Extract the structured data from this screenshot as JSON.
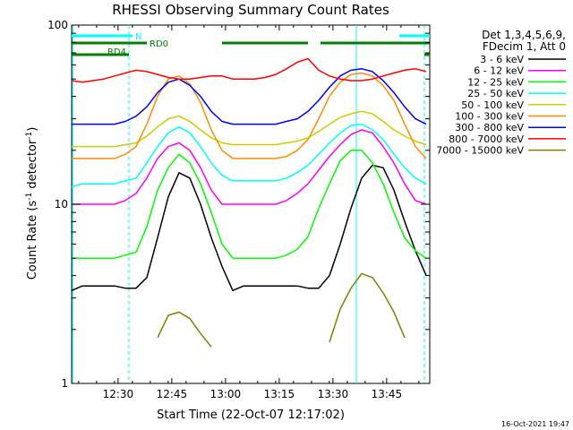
{
  "chart_data": {
    "type": "line",
    "title": "RHESSI Observing Summary Count Rates",
    "xlabel": "Start Time (22-Oct-07 12:17:02)",
    "ylabel_main": "Count Rate (s",
    "ylabel_sup1": "-1",
    "ylabel_mid": " detector",
    "ylabel_sup2": "-1",
    "ylabel_end": ")",
    "x_unit": "minutes since 12:17:02",
    "xlim": [
      0,
      100
    ],
    "ylim": [
      1,
      100
    ],
    "yscale": "log",
    "x_ticks": [
      {
        "label": "12:30",
        "value": 12.97
      },
      {
        "label": "12:45",
        "value": 27.97
      },
      {
        "label": "13:00",
        "value": 42.97
      },
      {
        "label": "13:15",
        "value": 57.97
      },
      {
        "label": "13:30",
        "value": 72.97
      },
      {
        "label": "13:45",
        "value": 87.97
      }
    ],
    "y_ticks": [
      {
        "label": "1",
        "value": 1
      },
      {
        "label": "10",
        "value": 10
      },
      {
        "label": "100",
        "value": 100
      }
    ],
    "x": [
      0,
      3,
      6,
      9,
      12,
      15,
      18,
      21,
      24,
      27,
      30,
      33,
      36,
      39,
      42,
      45,
      48,
      51,
      54,
      57,
      60,
      63,
      66,
      69,
      72,
      75,
      78,
      81,
      84,
      87,
      90,
      93,
      96,
      99
    ],
    "series": [
      {
        "name": "3 - 6 keV",
        "color": "#000000",
        "values": [
          3.3,
          3.5,
          3.5,
          3.5,
          3.5,
          3.4,
          3.4,
          3.9,
          6.5,
          11.0,
          15.0,
          14.0,
          10.0,
          6.5,
          4.5,
          3.3,
          3.5,
          3.5,
          3.5,
          3.5,
          3.5,
          3.5,
          3.4,
          3.4,
          4.0,
          6.0,
          9.5,
          14.0,
          16.5,
          16.0,
          12.0,
          8.0,
          5.5,
          4.0
        ]
      },
      {
        "name": "6 - 12 keV",
        "color": "#ff00ff",
        "values": [
          10.0,
          10.0,
          10.0,
          10.0,
          10.0,
          10.5,
          11.5,
          14.0,
          18.0,
          21.0,
          22.0,
          20.0,
          16.0,
          12.0,
          10.0,
          10.0,
          10.0,
          10.0,
          10.0,
          10.0,
          10.5,
          11.5,
          13.0,
          15.5,
          18.5,
          21.5,
          24.5,
          26.0,
          25.0,
          21.0,
          17.0,
          13.0,
          10.5,
          10.0
        ]
      },
      {
        "name": "12 - 25 keV",
        "color": "#00ff00",
        "values": [
          5.0,
          5.0,
          5.0,
          5.0,
          5.0,
          5.2,
          5.4,
          7.5,
          12.0,
          16.0,
          19.0,
          17.0,
          13.0,
          9.0,
          6.0,
          5.0,
          5.0,
          5.0,
          5.0,
          5.0,
          5.2,
          5.6,
          6.6,
          9.5,
          13.0,
          17.5,
          20.0,
          20.0,
          17.0,
          13.0,
          9.0,
          6.5,
          5.5,
          5.0
        ]
      },
      {
        "name": "25 - 50 keV",
        "color": "#00ffff",
        "values": [
          12.5,
          13.0,
          13.0,
          13.0,
          13.0,
          13.5,
          14.0,
          17.0,
          21.0,
          25.0,
          27.0,
          25.0,
          21.0,
          17.0,
          14.5,
          13.5,
          13.5,
          13.5,
          13.5,
          13.5,
          14.0,
          15.0,
          16.5,
          19.0,
          22.0,
          25.0,
          27.5,
          28.0,
          26.0,
          23.0,
          19.0,
          16.0,
          14.0,
          13.0
        ]
      },
      {
        "name": "50 - 100 keV",
        "color": "#cccc00",
        "values": [
          21.0,
          21.0,
          21.0,
          21.0,
          21.0,
          21.5,
          22.0,
          24.0,
          27.0,
          30.0,
          31.0,
          29.0,
          26.0,
          23.5,
          22.0,
          21.5,
          21.5,
          21.5,
          21.5,
          21.5,
          22.0,
          22.5,
          23.5,
          25.5,
          28.0,
          30.5,
          32.0,
          33.0,
          32.0,
          29.0,
          26.0,
          24.0,
          22.5,
          21.5
        ]
      },
      {
        "name": "100 - 300 keV",
        "color": "#ff8c00",
        "values": [
          18.0,
          18.0,
          18.0,
          18.0,
          18.0,
          19.0,
          21.0,
          28.0,
          40.0,
          50.0,
          52.0,
          47.0,
          37.0,
          26.0,
          20.0,
          18.0,
          18.0,
          18.0,
          18.0,
          18.0,
          18.5,
          20.0,
          23.0,
          30.0,
          40.0,
          48.0,
          53.0,
          54.0,
          52.0,
          46.0,
          38.0,
          28.0,
          21.0,
          18.0
        ]
      },
      {
        "name": "300 - 800 keV",
        "color": "#0000ff",
        "values": [
          28.0,
          28.0,
          28.0,
          28.0,
          28.0,
          29.0,
          31.0,
          35.0,
          42.0,
          48.0,
          50.0,
          46.0,
          40.0,
          33.0,
          29.0,
          28.0,
          28.0,
          28.0,
          28.0,
          28.0,
          29.0,
          30.0,
          33.0,
          38.0,
          45.0,
          52.0,
          56.0,
          57.0,
          55.0,
          49.0,
          42.0,
          35.0,
          30.0,
          28.0
        ]
      },
      {
        "name": "800 - 7000 keV",
        "color": "#ff0000",
        "values": [
          49.0,
          48.0,
          49.0,
          50.0,
          52.0,
          54.0,
          56.0,
          55.0,
          53.0,
          51.0,
          50.0,
          50.0,
          51.0,
          52.0,
          52.0,
          50.0,
          50.0,
          50.0,
          51.0,
          53.0,
          57.0,
          62.0,
          65.0,
          56.0,
          52.0,
          50.0,
          49.0,
          49.0,
          50.0,
          52.0,
          54.0,
          56.0,
          57.0,
          55.0
        ]
      },
      {
        "name": "7000 - 15000 keV",
        "color": "#808000",
        "values": [
          null,
          null,
          null,
          null,
          null,
          null,
          null,
          null,
          1.8,
          2.4,
          2.5,
          2.3,
          1.9,
          1.6,
          null,
          null,
          null,
          null,
          null,
          null,
          null,
          null,
          null,
          null,
          1.7,
          2.6,
          3.4,
          4.1,
          3.9,
          3.2,
          2.5,
          1.8,
          null,
          null
        ]
      }
    ],
    "legend": {
      "position": "right",
      "header_line1": "Det 1,3,4,5,6,9,",
      "header_line2": "FDecim 1, Att 0"
    },
    "bars": {
      "n_label": "N",
      "rd0_label": "RD0",
      "rd4_label": "RD4",
      "n_segments": [
        [
          0,
          17.0
        ],
        [
          91.5,
          100
        ]
      ],
      "rd0_segments": [
        [
          0,
          21.0
        ],
        [
          42.0,
          66.0
        ],
        [
          69.5,
          100
        ]
      ],
      "rd4_segments": [
        [
          0,
          16.0
        ],
        [
          98.5,
          100
        ]
      ],
      "n_color": "#00ffff",
      "rd_color": "#008000"
    },
    "vlines_solid": [
      0.3,
      79.5
    ],
    "vlines_dashed": [
      16.0,
      98.5
    ],
    "vline_color": "#00ffff",
    "grid": false,
    "timestamp": "16-Oct-2021 19:47"
  }
}
